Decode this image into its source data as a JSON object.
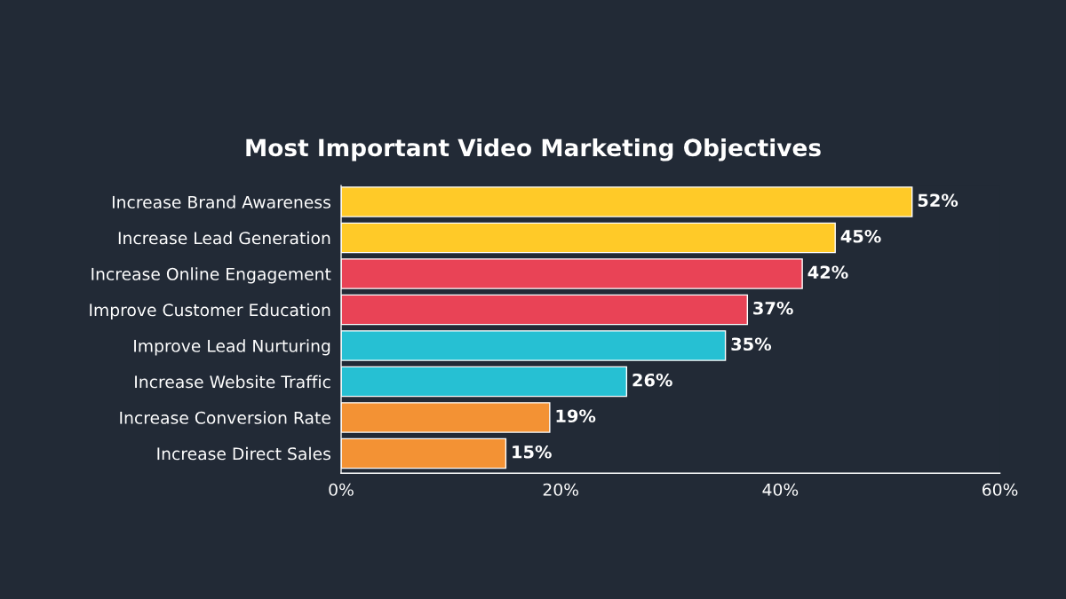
{
  "chart_data": {
    "type": "bar",
    "orientation": "horizontal",
    "title": "Most Important Video Marketing Objectives",
    "categories": [
      "Increase Brand Awareness",
      "Increase Lead Generation",
      "Increase Online Engagement",
      "Improve Customer Education",
      "Improve Lead Nurturing",
      "Increase Website Traffic",
      "Increase Conversion Rate",
      "Increase Direct Sales"
    ],
    "values": [
      52,
      45,
      42,
      37,
      35,
      26,
      19,
      15
    ],
    "colors": [
      "#ffca28",
      "#ffca28",
      "#e94356",
      "#e94356",
      "#26c0d3",
      "#26c0d3",
      "#f39234",
      "#f39234"
    ],
    "value_labels": [
      "52%",
      "45%",
      "42%",
      "37%",
      "35%",
      "26%",
      "19%",
      "15%"
    ],
    "xlim": [
      0,
      60
    ],
    "xticks": [
      {
        "value": 0,
        "label": "0%"
      },
      {
        "value": 20,
        "label": "20%"
      },
      {
        "value": 40,
        "label": "40%"
      },
      {
        "value": 60,
        "label": "60%"
      }
    ],
    "grid": false,
    "legend": false
  }
}
